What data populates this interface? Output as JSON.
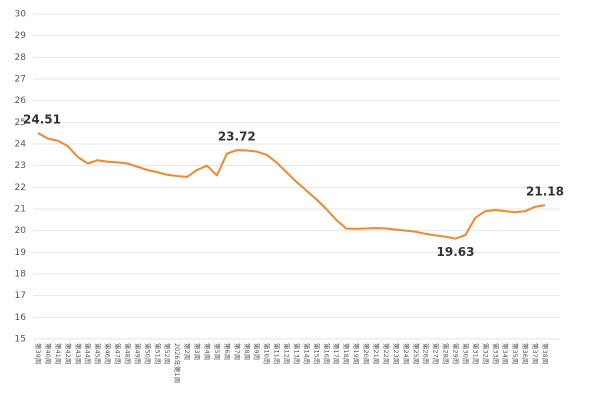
{
  "chart_data": {
    "type": "line",
    "categories": [
      "第39周",
      "第40周",
      "第41周",
      "第42周",
      "第43周",
      "第44周",
      "第45周",
      "第46周",
      "第47周",
      "第48周",
      "第49周",
      "第50周",
      "第51周",
      "第52周",
      "2026年第1周",
      "第2周",
      "第3周",
      "第4周",
      "第5周",
      "第6周",
      "第7周",
      "第8周",
      "第9周",
      "第10周",
      "第11周",
      "第12周",
      "第13周",
      "第14周",
      "第15周",
      "第16周",
      "第17周",
      "第18周",
      "第19周",
      "第20周",
      "第21周",
      "第22周",
      "第23周",
      "第24周",
      "第25周",
      "第26周",
      "第27周",
      "第28周",
      "第29周",
      "第30周",
      "第31周",
      "第32周",
      "第33周",
      "第34周",
      "第35周",
      "第36周",
      "第37周",
      "第38周"
    ],
    "values": [
      24.51,
      24.25,
      24.15,
      23.9,
      23.4,
      23.1,
      23.25,
      23.18,
      23.15,
      23.1,
      22.95,
      22.8,
      22.7,
      22.58,
      22.52,
      22.48,
      22.8,
      23.0,
      22.55,
      23.55,
      23.72,
      23.7,
      23.65,
      23.5,
      23.15,
      22.7,
      22.25,
      21.85,
      21.45,
      21.0,
      20.5,
      20.1,
      20.08,
      20.1,
      20.12,
      20.1,
      20.05,
      20.0,
      19.95,
      19.85,
      19.78,
      19.72,
      19.63,
      19.8,
      20.6,
      20.9,
      20.95,
      20.9,
      20.85,
      20.9,
      21.1,
      21.18
    ],
    "color": "#f0882c",
    "labeled_points": [
      0,
      20,
      42,
      51
    ],
    "ylim": [
      15,
      30
    ],
    "yticks": [
      15,
      16,
      17,
      18,
      19,
      20,
      21,
      22,
      23,
      24,
      25,
      26,
      27,
      28,
      29,
      30
    ],
    "grid": true
  }
}
